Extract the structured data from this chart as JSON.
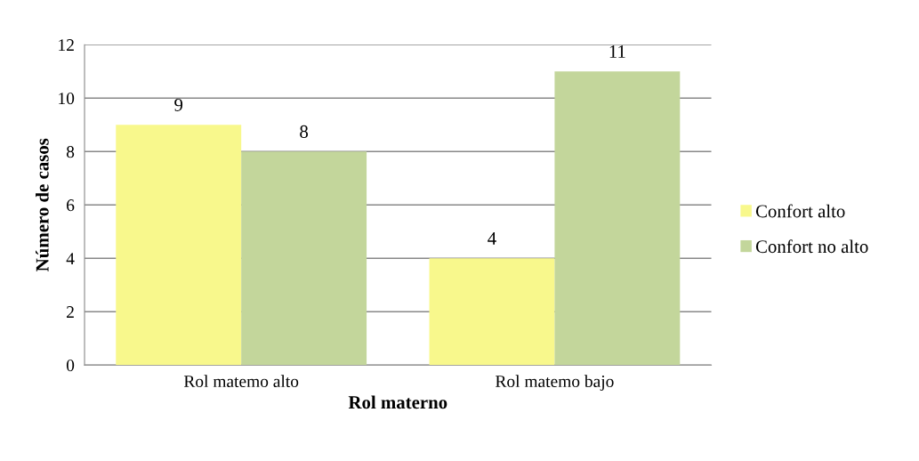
{
  "chart_data": {
    "type": "bar",
    "xlabel": "Rol materno",
    "ylabel": "Número de casos",
    "categories": [
      "Rol matemo alto",
      "Rol matemo bajo"
    ],
    "series": [
      {
        "name": "Confort alto",
        "color": "#f8f88c",
        "values": [
          9,
          4
        ]
      },
      {
        "name": "Confort no alto",
        "color": "#c3d69b",
        "values": [
          8,
          11
        ]
      }
    ],
    "ylim": [
      0,
      12
    ],
    "yticks": [
      0,
      2,
      4,
      6,
      8,
      10,
      12
    ],
    "grid": "y",
    "legend": "right",
    "data_labels": true
  }
}
